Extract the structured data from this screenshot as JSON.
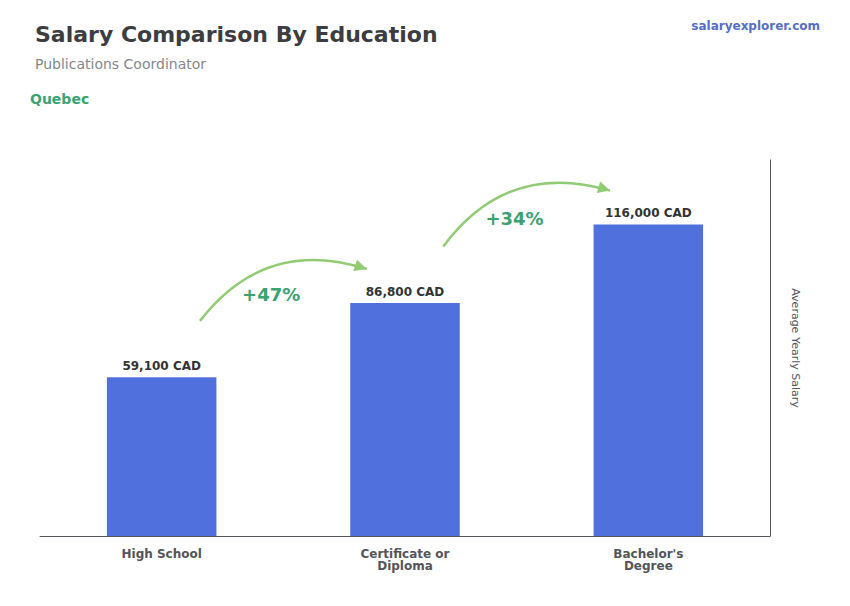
{
  "chart_data": {
    "type": "bar",
    "title": "Salary Comparison By Education",
    "subtitle": "Publications Coordinator",
    "annotations": [
      {
        "text": "Quebec"
      },
      {
        "text": "salaryexplorer.com"
      },
      {
        "text": "+47%",
        "from": "High School",
        "to": "Certificate or\nDiploma"
      },
      {
        "text": "+34%",
        "from": "Certificate or\nDiploma",
        "to": "Bachelor's\nDegree"
      }
    ],
    "ylabel": "Average Yearly Salary",
    "categories": [
      "High School",
      "Certificate or\nDiploma",
      "Bachelor's\nDegree"
    ],
    "values": [
      59100,
      86800,
      116000
    ],
    "value_labels": [
      "59,100 CAD",
      "86,800 CAD",
      "116,000 CAD"
    ],
    "data_labels": true,
    "ylim": [
      0,
      140000
    ],
    "grid": false,
    "tick_labels": "x"
  }
}
